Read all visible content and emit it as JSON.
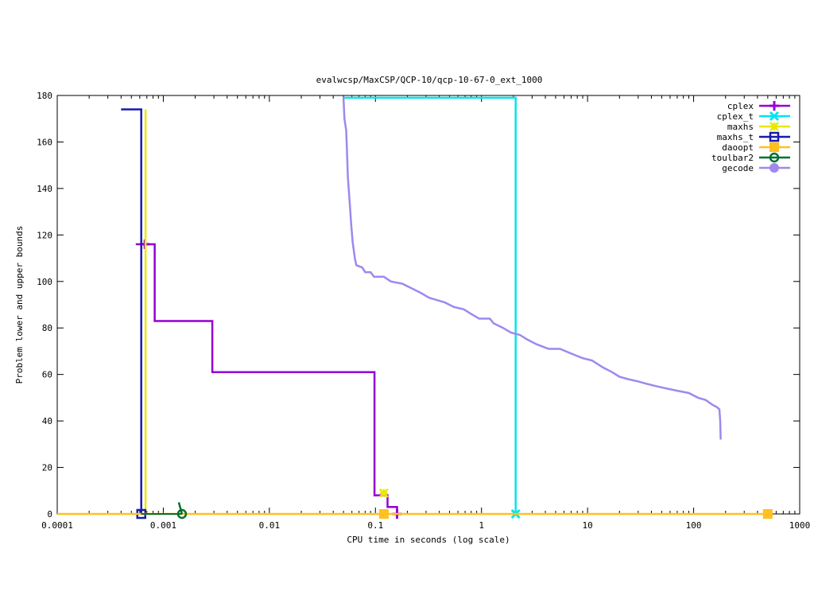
{
  "chart_data": {
    "type": "line",
    "title": "evalwcsp/MaxCSP/QCP-10/qcp-10-67-0_ext_1000",
    "xlabel": "CPU time in seconds (log scale)",
    "ylabel": "Problem lower and upper bounds",
    "xscale": "log",
    "xlim": [
      0.0001,
      1000
    ],
    "ylim": [
      0,
      180
    ],
    "grid": false,
    "legend_position": "top-right",
    "x_ticks": [
      {
        "value": 0.0001,
        "label": "0.0001"
      },
      {
        "value": 0.001,
        "label": "0.001"
      },
      {
        "value": 0.01,
        "label": "0.01"
      },
      {
        "value": 0.1,
        "label": "0.1"
      },
      {
        "value": 1,
        "label": "1"
      },
      {
        "value": 10,
        "label": "10"
      },
      {
        "value": 100,
        "label": "100"
      },
      {
        "value": 1000,
        "label": "1000"
      }
    ],
    "y_ticks": [
      {
        "value": 0,
        "label": "0"
      },
      {
        "value": 20,
        "label": "20"
      },
      {
        "value": 40,
        "label": "40"
      },
      {
        "value": 60,
        "label": "60"
      },
      {
        "value": 80,
        "label": "80"
      },
      {
        "value": 100,
        "label": "100"
      },
      {
        "value": 120,
        "label": "120"
      },
      {
        "value": 140,
        "label": "140"
      },
      {
        "value": 160,
        "label": "160"
      },
      {
        "value": 180,
        "label": "180"
      }
    ],
    "series": [
      {
        "name": "cplex",
        "color": "#9400d3",
        "marker": "plus",
        "upper": [
          [
            0.00055,
            116
          ],
          [
            0.00083,
            116
          ],
          [
            0.00083,
            83
          ],
          [
            0.0029,
            83
          ],
          [
            0.0029,
            61
          ],
          [
            0.098,
            61
          ],
          [
            0.098,
            8
          ],
          [
            0.13,
            8
          ],
          [
            0.13,
            3
          ],
          [
            0.16,
            3
          ],
          [
            0.16,
            0
          ]
        ],
        "lower": [
          [
            0.00055,
            0
          ],
          [
            0.16,
            0
          ]
        ],
        "markers": [
          [
            0.00067,
            116
          ],
          [
            0.16,
            0
          ]
        ]
      },
      {
        "name": "cplex_t",
        "color": "#00e5ee",
        "marker": "x",
        "upper": [
          [
            0.05,
            179
          ],
          [
            2.1,
            179
          ],
          [
            2.1,
            0
          ]
        ],
        "lower": [
          [
            0.05,
            0
          ],
          [
            2.1,
            0
          ]
        ],
        "markers": [
          [
            2.1,
            0
          ]
        ]
      },
      {
        "name": "maxhs",
        "color": "#e8e800",
        "marker": "star",
        "upper": [
          [
            0.00068,
            174
          ],
          [
            0.00068,
            0
          ]
        ],
        "lower": [
          [
            0.00068,
            0
          ],
          [
            0.12,
            0
          ]
        ],
        "markers": [
          [
            0.12,
            9
          ]
        ]
      },
      {
        "name": "maxhs_t",
        "color": "#1a1aaa",
        "marker": "square",
        "upper": [
          [
            0.0004,
            174
          ],
          [
            0.00062,
            174
          ],
          [
            0.00062,
            0
          ]
        ],
        "lower": [
          [
            0.0004,
            0
          ],
          [
            0.00062,
            0
          ]
        ],
        "markers": [
          [
            0.00062,
            0
          ]
        ]
      },
      {
        "name": "daoopt",
        "color": "#ffc020",
        "marker": "filled-square",
        "upper": [
          [
            0.0001,
            0
          ],
          [
            500,
            0
          ]
        ],
        "lower": [
          [
            0.0001,
            0
          ],
          [
            500,
            0
          ]
        ],
        "markers": [
          [
            0.12,
            0
          ],
          [
            500,
            0
          ]
        ]
      },
      {
        "name": "toulbar2",
        "color": "#007030",
        "marker": "circle",
        "upper": [
          [
            0.0014,
            5
          ],
          [
            0.0015,
            0
          ]
        ],
        "lower": [
          [
            0.00062,
            0
          ],
          [
            0.0015,
            0
          ]
        ],
        "markers": [
          [
            0.0015,
            0
          ]
        ]
      },
      {
        "name": "gecode",
        "color": "#9f88ee",
        "marker": "filled-circle",
        "upper": [
          [
            0.05,
            179
          ],
          [
            0.051,
            170
          ],
          [
            0.053,
            165
          ],
          [
            0.054,
            155
          ],
          [
            0.055,
            145
          ],
          [
            0.057,
            135
          ],
          [
            0.059,
            125
          ],
          [
            0.061,
            117
          ],
          [
            0.064,
            110
          ],
          [
            0.066,
            107
          ],
          [
            0.075,
            106
          ],
          [
            0.08,
            104
          ],
          [
            0.09,
            104
          ],
          [
            0.097,
            102
          ],
          [
            0.12,
            102
          ],
          [
            0.14,
            100
          ],
          [
            0.18,
            99
          ],
          [
            0.22,
            97
          ],
          [
            0.27,
            95
          ],
          [
            0.32,
            93
          ],
          [
            0.38,
            92
          ],
          [
            0.45,
            91
          ],
          [
            0.55,
            89
          ],
          [
            0.68,
            88
          ],
          [
            0.8,
            86
          ],
          [
            0.95,
            84
          ],
          [
            1.2,
            84
          ],
          [
            1.3,
            82
          ],
          [
            1.6,
            80
          ],
          [
            1.9,
            78
          ],
          [
            2.3,
            77
          ],
          [
            2.7,
            75
          ],
          [
            3.3,
            73
          ],
          [
            4.3,
            71
          ],
          [
            5.5,
            71
          ],
          [
            7,
            69
          ],
          [
            9,
            67
          ],
          [
            11,
            66
          ],
          [
            14,
            63
          ],
          [
            17,
            61
          ],
          [
            20,
            59
          ],
          [
            24,
            58
          ],
          [
            30,
            57
          ],
          [
            36,
            56
          ],
          [
            44,
            55
          ],
          [
            55,
            54
          ],
          [
            70,
            53
          ],
          [
            90,
            52
          ],
          [
            110,
            50
          ],
          [
            130,
            49
          ],
          [
            150,
            47
          ],
          [
            165,
            46
          ],
          [
            175,
            45
          ],
          [
            178,
            40
          ],
          [
            180,
            32
          ]
        ],
        "lower": [],
        "markers": []
      }
    ]
  }
}
